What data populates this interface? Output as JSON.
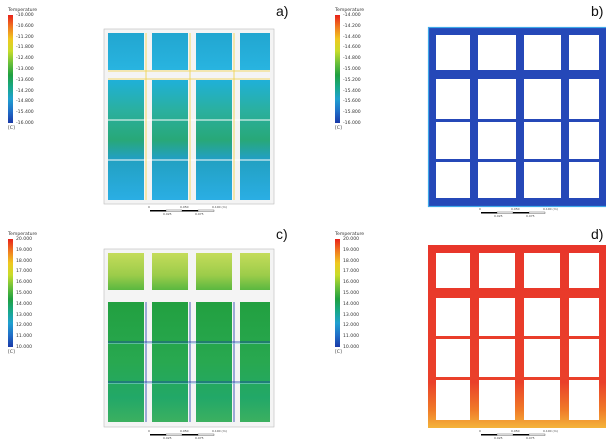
{
  "panels": [
    {
      "id": "a",
      "label": "a)",
      "legend_title": "Temperature",
      "unit": "[C]",
      "ticks": [
        "-10.000",
        "-10.600",
        "-11.200",
        "-11.800",
        "-12.400",
        "-13.000",
        "-13.600",
        "-14.200",
        "-14.800",
        "-15.400",
        "-16.000"
      ],
      "colors": {
        "cavity": "#2faee0",
        "frame": "#ffffff",
        "stripe": "#ffffff",
        "accent": "#f0e040"
      }
    },
    {
      "id": "b",
      "label": "b)",
      "legend_title": "Temperature",
      "unit": "[C]",
      "ticks": [
        "-14.000",
        "-14.200",
        "-14.400",
        "-14.600",
        "-14.800",
        "-15.000",
        "-15.200",
        "-15.400",
        "-15.600",
        "-15.800",
        "-16.000"
      ],
      "colors": {
        "frame": "#2244bb"
      }
    },
    {
      "id": "c",
      "label": "c)",
      "legend_title": "Temperature",
      "unit": "[C]",
      "ticks": [
        "20.000",
        "19.000",
        "18.000",
        "17.000",
        "16.000",
        "15.000",
        "14.000",
        "13.000",
        "12.000",
        "11.000",
        "10.000"
      ],
      "colors": {
        "cavity": "#22a83a",
        "top": "#b8d85a",
        "frame": "#ffffff"
      }
    },
    {
      "id": "d",
      "label": "d)",
      "legend_title": "Temperature",
      "unit": "[C]",
      "ticks": [
        "20.000",
        "19.000",
        "18.000",
        "17.000",
        "16.000",
        "15.000",
        "14.000",
        "13.000",
        "12.000",
        "11.000",
        "10.000"
      ],
      "colors": {
        "frame": "#e83a2a",
        "bottom": "#f0a030"
      }
    }
  ],
  "scale_labels": [
    "0",
    "0.050",
    "0.100 (m)",
    "0.025",
    "0.075"
  ]
}
